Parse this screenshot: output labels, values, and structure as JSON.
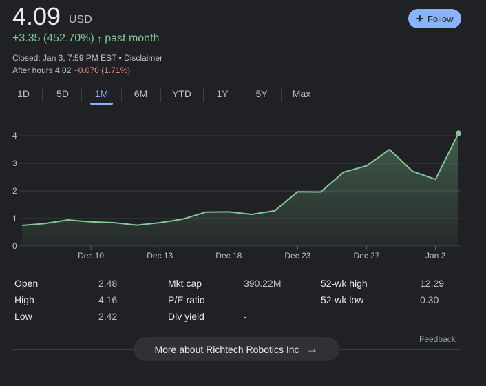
{
  "quote": {
    "price": "4.09",
    "currency": "USD",
    "change": "+3.35 (452.70%)",
    "change_arrow": "↑",
    "change_period": "past month",
    "closed_text": "Closed: Jan 3, 7:59 PM EST",
    "separator": " • ",
    "disclaimer": "Disclaimer",
    "after_hours_label": "After hours 4.02",
    "after_hours_change": "−0.070 (1.71%)"
  },
  "follow": {
    "icon": "plus-icon",
    "label": "Follow"
  },
  "tabs": [
    {
      "label": "1D",
      "active": false
    },
    {
      "label": "5D",
      "active": false
    },
    {
      "label": "1M",
      "active": true
    },
    {
      "label": "6M",
      "active": false
    },
    {
      "label": "YTD",
      "active": false
    },
    {
      "label": "1Y",
      "active": false
    },
    {
      "label": "5Y",
      "active": false
    },
    {
      "label": "Max",
      "active": false
    }
  ],
  "chart_data": {
    "type": "area",
    "y_ticks": [
      "0",
      "1",
      "2",
      "3",
      "4"
    ],
    "ylim": [
      0,
      4
    ],
    "x_ticks": [
      {
        "label": "Dec 10",
        "index": 3
      },
      {
        "label": "Dec 13",
        "index": 6
      },
      {
        "label": "Dec 18",
        "index": 9
      },
      {
        "label": "Dec 23",
        "index": 12
      },
      {
        "label": "Dec 27",
        "index": 15
      },
      {
        "label": "Jan 2",
        "index": 18
      }
    ],
    "values": [
      0.75,
      0.82,
      0.95,
      0.88,
      0.85,
      0.76,
      0.85,
      0.98,
      1.23,
      1.24,
      1.15,
      1.28,
      1.97,
      1.96,
      2.68,
      2.91,
      3.5,
      2.71,
      2.42,
      4.09
    ],
    "line_color": "#81c995",
    "fill_color": "#81c995",
    "grid": true
  },
  "stats": {
    "col1": [
      {
        "label": "Open",
        "value": "2.48"
      },
      {
        "label": "High",
        "value": "4.16"
      },
      {
        "label": "Low",
        "value": "2.42"
      }
    ],
    "col2": [
      {
        "label": "Mkt cap",
        "value": "390.22M"
      },
      {
        "label": "P/E ratio",
        "value": "-"
      },
      {
        "label": "Div yield",
        "value": "-"
      }
    ],
    "col3": [
      {
        "label": "52-wk high",
        "value": "12.29"
      },
      {
        "label": "52-wk low",
        "value": "0.30"
      }
    ]
  },
  "feedback": "Feedback",
  "more_button": {
    "label": "More about Richtech Robotics Inc",
    "icon": "arrow-right-icon"
  }
}
